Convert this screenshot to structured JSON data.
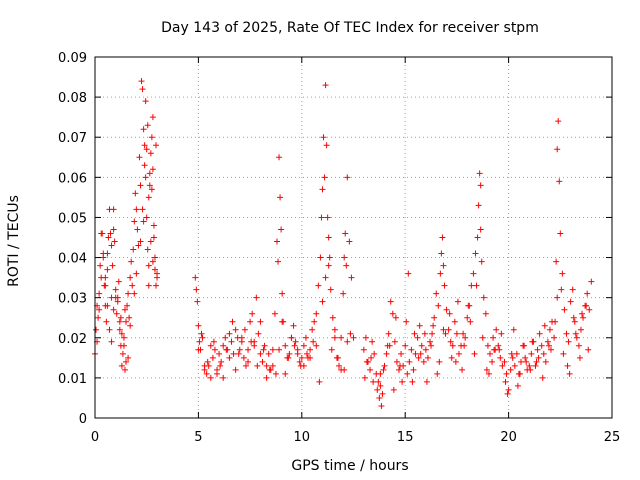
{
  "chart_data": {
    "type": "scatter",
    "title": "Day 143 of 2025, Rate Of TEC Index for receiver stpm",
    "xlabel": "GPS time / hours",
    "ylabel": "ROTI / TECUs",
    "xlim": [
      0,
      25
    ],
    "ylim": [
      0,
      0.09
    ],
    "x_ticks": [
      0,
      5,
      10,
      15,
      20,
      25
    ],
    "y_ticks": [
      0,
      0.01,
      0.02,
      0.03,
      0.04,
      0.05,
      0.06,
      0.07,
      0.08,
      0.09
    ],
    "x_tick_labels": [
      "0",
      "5",
      "10",
      "15",
      "20",
      "25"
    ],
    "y_tick_labels": [
      "0",
      "0.01",
      "0.02",
      "0.03",
      "0.04",
      "0.05",
      "0.06",
      "0.07",
      "0.08",
      "0.09"
    ],
    "grid": true,
    "marker": "plus",
    "color": "#ff0000",
    "series": [
      {
        "x": [
          0.0,
          0.05,
          0.1,
          0.15,
          0.2,
          0.25,
          0.3,
          0.35,
          0.4,
          0.45,
          0.5,
          0.55,
          0.6,
          0.65,
          0.7,
          0.75,
          0.8,
          0.85,
          0.9,
          0.95,
          1.0,
          1.05,
          1.1,
          1.15,
          1.2,
          1.25,
          1.3,
          1.35,
          1.4,
          1.45,
          1.5,
          1.55,
          1.6,
          1.65,
          1.7,
          1.75,
          1.8,
          1.85,
          1.9,
          1.95,
          2.0,
          2.05,
          2.1,
          2.15,
          2.2,
          2.25,
          2.3,
          2.35,
          2.4,
          2.45,
          2.5,
          2.55,
          2.6,
          2.65,
          2.7,
          2.75,
          2.8,
          2.85,
          2.9,
          2.95,
          3.0,
          0.3,
          0.4,
          0.5,
          0.6,
          0.7,
          0.8,
          0.9,
          1.0,
          1.2,
          1.4,
          1.6,
          2.3,
          2.4,
          2.5,
          2.6,
          2.7,
          2.8,
          2.9,
          3.0,
          0.2,
          0.5,
          0.8,
          1.1,
          1.3,
          1.5,
          1.7,
          2.0,
          2.2,
          2.45,
          2.55,
          2.65,
          2.75,
          2.85,
          0.1,
          0.6,
          0.9,
          1.25,
          1.45,
          1.9,
          2.35,
          2.6,
          2.8,
          2.95,
          4.85,
          4.9,
          4.95,
          5.0,
          5.05,
          5.1,
          5.2,
          5.3,
          5.4,
          5.5,
          5.6,
          5.7,
          5.8,
          5.9,
          6.0,
          6.1,
          6.2,
          6.3,
          6.4,
          6.5,
          6.6,
          6.7,
          6.8,
          6.9,
          7.0,
          7.1,
          7.2,
          7.3,
          7.4,
          7.5,
          7.6,
          7.7,
          7.8,
          7.9,
          8.0,
          8.1,
          8.2,
          8.3,
          8.4,
          8.5,
          8.6,
          8.7,
          8.8,
          8.85,
          8.9,
          8.95,
          9.0,
          9.05,
          9.1,
          9.2,
          9.3,
          9.4,
          9.5,
          9.6,
          9.7,
          9.8,
          9.9,
          10.0,
          10.1,
          10.2,
          10.3,
          10.4,
          10.5,
          10.6,
          10.7,
          10.8,
          10.9,
          10.95,
          11.0,
          11.05,
          11.1,
          11.15,
          11.2,
          11.25,
          11.3,
          11.35,
          11.4,
          11.5,
          11.6,
          11.7,
          11.8,
          11.9,
          12.0,
          12.05,
          12.1,
          12.15,
          12.2,
          12.3,
          12.4,
          12.5,
          5.0,
          5.3,
          5.6,
          5.9,
          6.2,
          6.5,
          6.8,
          7.1,
          7.4,
          7.7,
          8.0,
          8.3,
          8.6,
          8.9,
          9.2,
          9.5,
          9.8,
          10.1,
          10.4,
          10.7,
          11.0,
          11.3,
          11.6,
          11.9,
          12.2,
          5.15,
          5.45,
          5.75,
          6.05,
          6.35,
          6.65,
          6.95,
          7.25,
          7.55,
          7.85,
          8.15,
          8.45,
          8.75,
          9.05,
          9.35,
          9.65,
          9.95,
          10.25,
          10.55,
          10.85,
          11.15,
          11.45,
          11.75,
          12.05,
          12.35,
          13.0,
          13.1,
          13.2,
          13.3,
          13.4,
          13.5,
          13.6,
          13.7,
          13.75,
          13.8,
          13.85,
          13.9,
          14.0,
          14.1,
          14.2,
          14.3,
          14.4,
          14.5,
          14.6,
          14.7,
          14.8,
          14.9,
          15.0,
          15.1,
          15.2,
          15.3,
          15.4,
          15.5,
          15.6,
          15.7,
          15.8,
          15.9,
          16.0,
          16.1,
          16.2,
          16.3,
          16.4,
          16.5,
          16.6,
          16.7,
          16.75,
          16.8,
          16.85,
          16.9,
          17.0,
          17.1,
          17.2,
          17.3,
          17.4,
          17.5,
          17.6,
          17.7,
          17.8,
          17.9,
          18.0,
          18.1,
          18.2,
          18.3,
          18.4,
          18.5,
          18.55,
          18.6,
          18.65,
          18.7,
          18.8,
          18.9,
          19.0,
          19.1,
          19.2,
          19.3,
          19.4,
          19.5,
          19.6,
          19.7,
          19.8,
          19.9,
          20.0,
          20.1,
          20.2,
          20.3,
          20.4,
          20.5,
          20.6,
          20.7,
          20.8,
          20.9,
          21.0,
          21.1,
          21.2,
          21.3,
          21.4,
          21.5,
          21.6,
          21.7,
          21.8,
          21.9,
          22.0,
          22.1,
          22.2,
          22.3,
          22.35,
          22.4,
          22.45,
          22.5,
          22.6,
          22.7,
          22.8,
          22.9,
          23.0,
          23.1,
          23.2,
          23.3,
          23.4,
          23.5,
          23.6,
          23.7,
          23.8,
          23.9,
          24.0,
          13.05,
          13.35,
          13.65,
          13.95,
          14.25,
          14.55,
          14.85,
          15.15,
          15.45,
          15.75,
          16.05,
          16.35,
          16.65,
          16.95,
          17.25,
          17.55,
          17.85,
          18.15,
          18.45,
          18.75,
          19.05,
          19.35,
          19.65,
          19.95,
          20.25,
          20.55,
          20.85,
          21.15,
          21.45,
          21.75,
          22.05,
          22.35,
          22.65,
          22.95,
          23.25,
          23.55,
          23.85,
          13.15,
          13.45,
          13.8,
          14.15,
          14.45,
          14.75,
          15.05,
          15.35,
          15.65,
          15.95,
          16.25,
          16.55,
          16.85,
          17.15,
          17.45,
          17.75,
          18.05,
          18.35,
          18.65,
          18.95,
          19.25,
          19.55,
          19.85,
          20.15,
          20.45,
          20.75,
          21.05,
          21.35,
          21.65,
          21.95,
          22.25,
          22.55,
          22.85,
          23.15,
          23.45,
          23.75
        ],
        "y": [
          0.016,
          0.022,
          0.028,
          0.025,
          0.031,
          0.038,
          0.035,
          0.046,
          0.041,
          0.033,
          0.028,
          0.024,
          0.037,
          0.045,
          0.052,
          0.046,
          0.03,
          0.038,
          0.052,
          0.044,
          0.032,
          0.026,
          0.03,
          0.034,
          0.022,
          0.018,
          0.013,
          0.016,
          0.02,
          0.027,
          0.024,
          0.028,
          0.031,
          0.025,
          0.035,
          0.039,
          0.033,
          0.042,
          0.049,
          0.056,
          0.052,
          0.047,
          0.043,
          0.065,
          0.058,
          0.084,
          0.082,
          0.072,
          0.068,
          0.06,
          0.05,
          0.042,
          0.038,
          0.058,
          0.066,
          0.07,
          0.075,
          0.048,
          0.04,
          0.033,
          0.036,
          0.046,
          0.04,
          0.035,
          0.028,
          0.022,
          0.019,
          0.027,
          0.03,
          0.024,
          0.018,
          0.015,
          0.052,
          0.063,
          0.067,
          0.055,
          0.044,
          0.039,
          0.037,
          0.035,
          0.027,
          0.033,
          0.043,
          0.029,
          0.021,
          0.014,
          0.023,
          0.036,
          0.044,
          0.079,
          0.073,
          0.061,
          0.057,
          0.045,
          0.019,
          0.041,
          0.047,
          0.025,
          0.012,
          0.031,
          0.049,
          0.033,
          0.062,
          0.068,
          0.035,
          0.032,
          0.029,
          0.023,
          0.019,
          0.017,
          0.02,
          0.012,
          0.011,
          0.013,
          0.01,
          0.015,
          0.017,
          0.012,
          0.016,
          0.014,
          0.018,
          0.02,
          0.017,
          0.021,
          0.019,
          0.016,
          0.022,
          0.02,
          0.017,
          0.019,
          0.015,
          0.013,
          0.017,
          0.024,
          0.026,
          0.019,
          0.03,
          0.021,
          0.016,
          0.014,
          0.018,
          0.013,
          0.016,
          0.012,
          0.017,
          0.026,
          0.044,
          0.039,
          0.065,
          0.055,
          0.047,
          0.031,
          0.024,
          0.018,
          0.015,
          0.016,
          0.02,
          0.023,
          0.019,
          0.017,
          0.014,
          0.015,
          0.018,
          0.02,
          0.015,
          0.017,
          0.022,
          0.024,
          0.026,
          0.033,
          0.04,
          0.05,
          0.057,
          0.07,
          0.06,
          0.083,
          0.068,
          0.05,
          0.045,
          0.04,
          0.032,
          0.025,
          0.02,
          0.015,
          0.013,
          0.02,
          0.031,
          0.04,
          0.046,
          0.038,
          0.06,
          0.044,
          0.035,
          0.02,
          0.017,
          0.013,
          0.018,
          0.011,
          0.01,
          0.015,
          0.012,
          0.02,
          0.014,
          0.018,
          0.024,
          0.01,
          0.013,
          0.017,
          0.011,
          0.02,
          0.016,
          0.013,
          0.015,
          0.018,
          0.029,
          0.038,
          0.022,
          0.012,
          0.019,
          0.021,
          0.014,
          0.019,
          0.013,
          0.017,
          0.024,
          0.016,
          0.022,
          0.019,
          0.013,
          0.017,
          0.012,
          0.011,
          0.024,
          0.015,
          0.018,
          0.013,
          0.016,
          0.019,
          0.009,
          0.035,
          0.017,
          0.015,
          0.012,
          0.021,
          0.017,
          0.02,
          0.014,
          0.012,
          0.019,
          0.016,
          0.011,
          0.009,
          0.005,
          0.008,
          0.003,
          0.006,
          0.013,
          0.016,
          0.021,
          0.029,
          0.026,
          0.019,
          0.014,
          0.012,
          0.016,
          0.013,
          0.018,
          0.011,
          0.014,
          0.017,
          0.012,
          0.016,
          0.02,
          0.023,
          0.018,
          0.014,
          0.017,
          0.015,
          0.019,
          0.021,
          0.025,
          0.031,
          0.028,
          0.036,
          0.041,
          0.045,
          0.038,
          0.033,
          0.027,
          0.022,
          0.019,
          0.018,
          0.024,
          0.021,
          0.016,
          0.018,
          0.021,
          0.02,
          0.025,
          0.028,
          0.033,
          0.036,
          0.041,
          0.045,
          0.053,
          0.061,
          0.047,
          0.039,
          0.03,
          0.026,
          0.018,
          0.016,
          0.014,
          0.017,
          0.022,
          0.018,
          0.015,
          0.013,
          0.014,
          0.011,
          0.007,
          0.012,
          0.015,
          0.013,
          0.016,
          0.011,
          0.014,
          0.018,
          0.015,
          0.012,
          0.013,
          0.016,
          0.019,
          0.013,
          0.017,
          0.021,
          0.018,
          0.016,
          0.014,
          0.019,
          0.022,
          0.024,
          0.02,
          0.039,
          0.067,
          0.074,
          0.059,
          0.046,
          0.036,
          0.027,
          0.021,
          0.019,
          0.029,
          0.032,
          0.024,
          0.02,
          0.018,
          0.022,
          0.025,
          0.028,
          0.031,
          0.027,
          0.034,
          0.01,
          0.015,
          0.007,
          0.012,
          0.018,
          0.025,
          0.009,
          0.036,
          0.021,
          0.016,
          0.009,
          0.023,
          0.014,
          0.021,
          0.015,
          0.029,
          0.018,
          0.024,
          0.033,
          0.02,
          0.011,
          0.017,
          0.021,
          0.006,
          0.022,
          0.011,
          0.014,
          0.019,
          0.015,
          0.023,
          0.017,
          0.03,
          0.016,
          0.011,
          0.021,
          0.026,
          0.017,
          0.014,
          0.009,
          0.011,
          0.018,
          0.007,
          0.013,
          0.024,
          0.009,
          0.015,
          0.021,
          0.018,
          0.011,
          0.022,
          0.026,
          0.014,
          0.012,
          0.028,
          0.016,
          0.058,
          0.012,
          0.02,
          0.017,
          0.009,
          0.016,
          0.008,
          0.018,
          0.012,
          0.014,
          0.01,
          0.018,
          0.024,
          0.032,
          0.013,
          0.025,
          0.015,
          0.028
        ]
      }
    ]
  }
}
